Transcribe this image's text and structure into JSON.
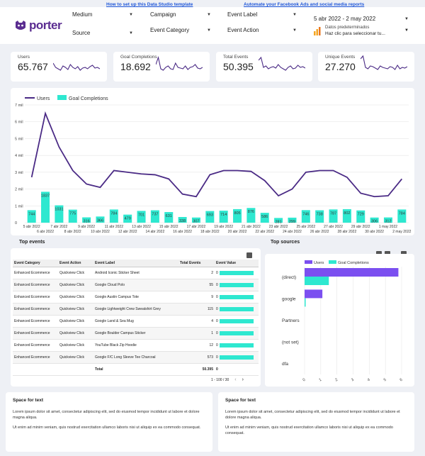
{
  "top_links": {
    "template": "How to set up this Data Studio template",
    "automate": "Automate your Facebook Ads and social media reports"
  },
  "brand": {
    "name": "porter",
    "color": "#5b2d91"
  },
  "filters": {
    "medium": "Medium",
    "source": "Source",
    "campaign": "Campaign",
    "event_category": "Event Category",
    "event_label": "Event Label",
    "event_action": "Event Action",
    "date_range": "5 abr 2022 - 2 may 2022",
    "date_default": "Datos predeterminados",
    "date_hint": "Haz clic para seleccionar tu..."
  },
  "scorecards": [
    {
      "label": "Users",
      "value": "65.767",
      "icon": "sparkline"
    },
    {
      "label": "Goal Completions",
      "value": "18.692",
      "icon": "sparkline"
    },
    {
      "label": "Total Events",
      "value": "50.395",
      "icon": "sparkline"
    },
    {
      "label": "Unique Events",
      "value": "27.270",
      "icon": "sparkline"
    }
  ],
  "main_chart": {
    "legend_users": "Users",
    "legend_goals": "Goal Completions",
    "y_ticks": [
      "7 mil",
      "6 mil",
      "5 mil",
      "4 mil",
      "3 mil",
      "2 mil",
      "1 mil",
      "0"
    ],
    "colors": {
      "users": "#4a2a85",
      "goals": "#2ee8d0"
    }
  },
  "chart_data": {
    "type": "bar",
    "categories": [
      "5 abr 2022",
      "6 abr 2022",
      "7 abr 2022",
      "8 abr 2022",
      "9 abr 2022",
      "10 abr 2022",
      "11 abr 2022",
      "12 abr 2022",
      "13 abr 2022",
      "14 abr 2022",
      "15 abr 2022",
      "16 abr 2022",
      "17 abr 2022",
      "18 abr 2022",
      "19 abr 2022",
      "20 abr 2022",
      "21 abr 2022",
      "22 abr 2022",
      "23 abr 2022",
      "24 abr 2022",
      "25 abr 2022",
      "26 abr 2022",
      "27 abr 2022",
      "28 abr 2022",
      "29 abr 2022",
      "30 abr 2022",
      "1 may 2022",
      "2 may 2022"
    ],
    "series": [
      {
        "name": "Users",
        "type": "line",
        "values": [
          2700,
          6500,
          4500,
          3100,
          2300,
          2100,
          3100,
          3000,
          2900,
          2850,
          2600,
          1700,
          1550,
          2850,
          3100,
          3100,
          3050,
          2500,
          1600,
          2000,
          3000,
          3100,
          3100,
          2700,
          1750,
          1550,
          1600,
          2600
        ]
      },
      {
        "name": "Goal Completions",
        "type": "bar",
        "values": [
          744,
          1837,
          1031,
          775,
          316,
          366,
          784,
          479,
          701,
          737,
          631,
          338,
          307,
          693,
          714,
          805,
          876,
          586,
          281,
          299,
          746,
          738,
          787,
          802,
          729,
          306,
          312,
          784
        ]
      }
    ],
    "ylim": [
      0,
      7000
    ],
    "xlabel": "",
    "ylabel": ""
  },
  "top_events": {
    "title": "Top events",
    "columns": [
      "Event Category",
      "Event Action",
      "Event Label",
      "Total Events",
      "Event Value"
    ],
    "rows": [
      [
        "Enhanced Ecommerce",
        "Quickview Click",
        "Android Iconic Sticker Sheet",
        "2",
        "0"
      ],
      [
        "Enhanced Ecommerce",
        "Quickview Click",
        "Google Cloud Polo",
        "55",
        "0"
      ],
      [
        "Enhanced Ecommerce",
        "Quickview Click",
        "Google Austin Campus Tote",
        "9",
        "0"
      ],
      [
        "Enhanced Ecommerce",
        "Quickview Click",
        "Google Lightweight Crew Sweatshirt Grey",
        "115",
        "0"
      ],
      [
        "Enhanced Ecommerce",
        "Quickview Click",
        "Google Land & Sea Mug",
        "4",
        "0"
      ],
      [
        "Enhanced Ecommerce",
        "Quickview Click",
        "Google Boulder Campus Sticker",
        "1",
        "0"
      ],
      [
        "Enhanced Ecommerce",
        "Quickview Click",
        "YouTube Black Zip Hoodie",
        "12",
        "0"
      ],
      [
        "Enhanced Ecommerce",
        "Quickview Click",
        "Google F/C Long Sleeve Tee Charcoal",
        "573",
        "0"
      ]
    ],
    "total_label": "Total",
    "total_events": "50.395",
    "total_value": "0",
    "pagination": "1 - 100 / 30"
  },
  "top_sources": {
    "title": "Top sources",
    "legend_users": "Users",
    "legend_goals": "Goal Completions",
    "categories": [
      "(direct)",
      "google",
      "Partners",
      "(not set)",
      "dfa"
    ],
    "users": [
      5.8,
      1.1,
      0,
      0,
      0
    ],
    "goals": [
      1.5,
      0.05,
      0,
      0,
      0
    ],
    "x_ticks": [
      "0",
      "1",
      "2",
      "3",
      "4",
      "5",
      "6"
    ]
  },
  "text_blocks": [
    {
      "title": "Space for text",
      "p1": "Lorem ipsum dolor sit amet, consectetur adipiscing elit, sed do eiusmod tempor incididunt ut labore et dolore magna aliqua.",
      "p2": "Ut enim ad minim veniam, quis nostrud exercitation ullamco laboris nisi ut aliquip ex ea commodo consequat."
    },
    {
      "title": "Space for text",
      "p1": "Lorem ipsum dolor sit amet, consectetur adipiscing elit, sed do eiusmod tempor incididunt ut labore et dolore magna aliqua.",
      "p2": "Ut enim ad minim veniam, quis nostrud exercitation ullamco laboris nisi ut aliquip ex ea commodo consequat."
    }
  ]
}
